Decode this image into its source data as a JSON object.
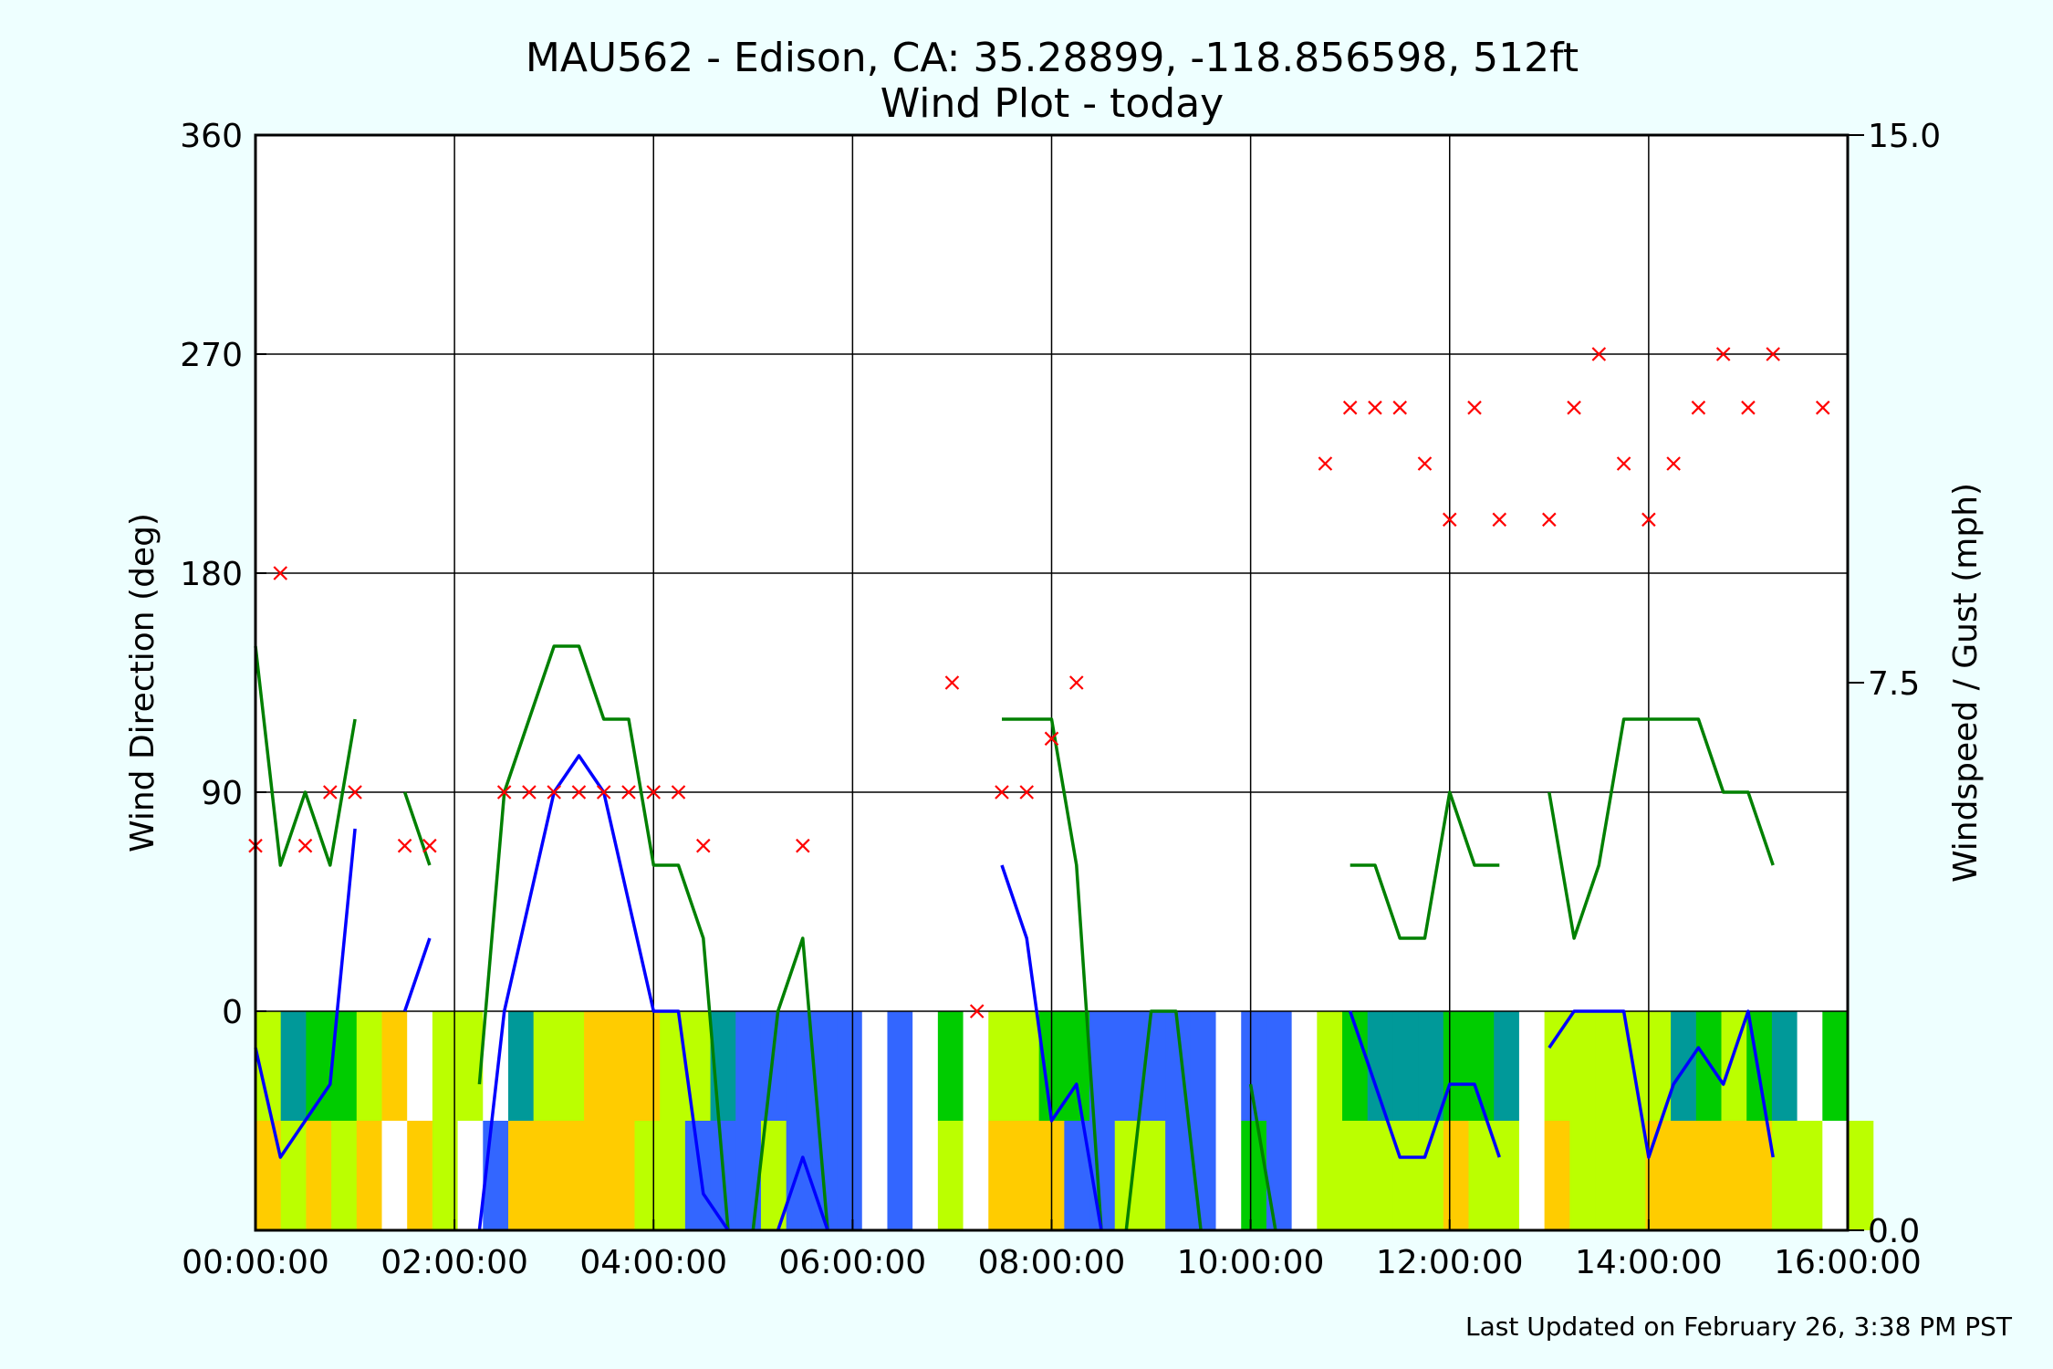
{
  "chart_data": {
    "type": "line",
    "title": "MAU562 - Edison, CA: 35.28899, -118.856598, 512ft",
    "subtitle": "Wind Plot - today",
    "ylabel_left": "Wind Direction (deg)",
    "ylabel_right": "Windspeed / Gust (mph)",
    "footer": "Last Updated on February 26, 3:38 PM PST",
    "x_range_hours": [
      0,
      16
    ],
    "x_ticks": [
      {
        "h": 0,
        "label": "00:00:00"
      },
      {
        "h": 2,
        "label": "02:00:00"
      },
      {
        "h": 4,
        "label": "04:00:00"
      },
      {
        "h": 6,
        "label": "06:00:00"
      },
      {
        "h": 8,
        "label": "08:00:00"
      },
      {
        "h": 10,
        "label": "10:00:00"
      },
      {
        "h": 12,
        "label": "12:00:00"
      },
      {
        "h": 14,
        "label": "14:00:00"
      },
      {
        "h": 16,
        "label": "16:00:00"
      }
    ],
    "y_left": {
      "range": [
        -90,
        360
      ],
      "ticks": [
        {
          "v": 0,
          "label": "0"
        },
        {
          "v": 90,
          "label": "90"
        },
        {
          "v": 180,
          "label": "180"
        },
        {
          "v": 270,
          "label": "270"
        },
        {
          "v": 360,
          "label": "360"
        }
      ]
    },
    "y_right": {
      "range": [
        0,
        15
      ],
      "ticks": [
        {
          "v": 0,
          "label": "0.0"
        },
        {
          "v": 7.5,
          "label": "7.5"
        },
        {
          "v": 15,
          "label": "15.0"
        }
      ]
    },
    "grid": true,
    "colors": {
      "direction": "#ff0000",
      "speed": "#0000ff",
      "gust": "#008000",
      "background": "#eeffff"
    },
    "series": [
      {
        "role": "direction",
        "marker": "x",
        "color": "#ff0000",
        "points": [
          [
            0.0,
            68
          ],
          [
            0.25,
            180
          ],
          [
            0.5,
            68
          ],
          [
            0.75,
            90
          ],
          [
            1.0,
            90
          ],
          [
            1.5,
            68
          ],
          [
            1.75,
            68
          ],
          [
            2.5,
            90
          ],
          [
            2.75,
            90
          ],
          [
            3.0,
            90
          ],
          [
            3.25,
            90
          ],
          [
            3.5,
            90
          ],
          [
            3.75,
            90
          ],
          [
            4.0,
            90
          ],
          [
            4.25,
            90
          ],
          [
            4.5,
            68
          ],
          [
            5.5,
            68
          ],
          [
            7.0,
            135
          ],
          [
            7.25,
            0
          ],
          [
            7.5,
            90
          ],
          [
            7.75,
            90
          ],
          [
            8.0,
            112
          ],
          [
            8.25,
            135
          ],
          [
            10.75,
            225
          ],
          [
            11.0,
            248
          ],
          [
            11.25,
            248
          ],
          [
            11.5,
            248
          ],
          [
            11.75,
            225
          ],
          [
            12.0,
            202
          ],
          [
            12.25,
            248
          ],
          [
            12.5,
            202
          ],
          [
            13.0,
            202
          ],
          [
            13.25,
            248
          ],
          [
            13.5,
            270
          ],
          [
            13.75,
            225
          ],
          [
            14.0,
            202
          ],
          [
            14.25,
            225
          ],
          [
            14.5,
            248
          ],
          [
            14.75,
            270
          ],
          [
            15.0,
            248
          ],
          [
            15.25,
            270
          ],
          [
            15.75,
            248
          ]
        ]
      },
      {
        "role": "speed",
        "unit": "mph",
        "color": "#0000ff",
        "segments": [
          [
            [
              0.0,
              2.5
            ],
            [
              0.25,
              1.0
            ],
            [
              0.5,
              1.5
            ],
            [
              0.75,
              2.0
            ],
            [
              1.0,
              5.5
            ]
          ],
          [
            [
              1.5,
              3.0
            ],
            [
              1.75,
              4.0
            ]
          ],
          [
            [
              2.25,
              0.0
            ],
            [
              2.5,
              3.0
            ],
            [
              2.75,
              4.5
            ],
            [
              3.0,
              6.0
            ],
            [
              3.25,
              6.5
            ],
            [
              3.5,
              6.0
            ],
            [
              3.75,
              4.5
            ],
            [
              4.0,
              3.0
            ],
            [
              4.25,
              3.0
            ],
            [
              4.5,
              0.5
            ],
            [
              4.75,
              0.0
            ]
          ],
          [
            [
              5.25,
              0.0
            ],
            [
              5.5,
              1.0
            ],
            [
              5.75,
              0.0
            ]
          ],
          [
            [
              7.5,
              5.0
            ],
            [
              7.75,
              4.0
            ],
            [
              8.0,
              1.5
            ],
            [
              8.25,
              2.0
            ],
            [
              8.5,
              0.0
            ]
          ],
          [
            [
              11.0,
              3.0
            ],
            [
              11.25,
              2.0
            ],
            [
              11.5,
              1.0
            ],
            [
              11.75,
              1.0
            ],
            [
              12.0,
              2.0
            ],
            [
              12.25,
              2.0
            ],
            [
              12.5,
              1.0
            ]
          ],
          [
            [
              13.0,
              2.5
            ],
            [
              13.25,
              3.0
            ],
            [
              13.5,
              3.0
            ],
            [
              13.75,
              3.0
            ],
            [
              14.0,
              1.0
            ],
            [
              14.25,
              2.0
            ],
            [
              14.5,
              2.5
            ],
            [
              14.75,
              2.0
            ],
            [
              15.0,
              3.0
            ],
            [
              15.25,
              1.0
            ]
          ]
        ]
      },
      {
        "role": "gust",
        "unit": "mph",
        "color": "#008000",
        "segments": [
          [
            [
              0.0,
              8.0
            ],
            [
              0.25,
              5.0
            ],
            [
              0.5,
              6.0
            ],
            [
              0.75,
              5.0
            ],
            [
              1.0,
              7.0
            ]
          ],
          [
            [
              1.5,
              6.0
            ],
            [
              1.75,
              5.0
            ]
          ],
          [
            [
              2.25,
              2.0
            ],
            [
              2.5,
              6.0
            ],
            [
              2.75,
              7.0
            ],
            [
              3.0,
              8.0
            ],
            [
              3.25,
              8.0
            ],
            [
              3.5,
              7.0
            ],
            [
              3.75,
              7.0
            ],
            [
              4.0,
              5.0
            ],
            [
              4.25,
              5.0
            ],
            [
              4.5,
              4.0
            ],
            [
              4.75,
              0.0
            ]
          ],
          [
            [
              5.0,
              0.0
            ],
            [
              5.25,
              3.0
            ],
            [
              5.5,
              4.0
            ],
            [
              5.75,
              0.0
            ]
          ],
          [
            [
              7.5,
              7.0
            ],
            [
              8.0,
              7.0
            ],
            [
              8.25,
              5.0
            ],
            [
              8.5,
              0.0
            ]
          ],
          [
            [
              8.75,
              0.0
            ],
            [
              9.0,
              3.0
            ],
            [
              9.25,
              3.0
            ],
            [
              9.5,
              0.0
            ]
          ],
          [
            [
              10.0,
              2.0
            ],
            [
              10.25,
              0.0
            ]
          ],
          [
            [
              11.0,
              5.0
            ],
            [
              11.25,
              5.0
            ],
            [
              11.5,
              4.0
            ],
            [
              11.75,
              4.0
            ],
            [
              12.0,
              6.0
            ],
            [
              12.25,
              5.0
            ],
            [
              12.5,
              5.0
            ]
          ],
          [
            [
              13.0,
              6.0
            ],
            [
              13.25,
              4.0
            ],
            [
              13.5,
              5.0
            ],
            [
              13.75,
              7.0
            ],
            [
              14.0,
              7.0
            ],
            [
              14.25,
              7.0
            ],
            [
              14.5,
              7.0
            ],
            [
              14.75,
              6.0
            ],
            [
              15.0,
              6.0
            ],
            [
              15.25,
              5.0
            ]
          ]
        ]
      }
    ],
    "heat_band": {
      "colors": {
        "A": "#3366ff",
        "B": "#009999",
        "C": "#00cc00",
        "D": "#bbff00",
        "E": "#ffcc00",
        "W": "#ffffff"
      },
      "upper": "DBCCDEWDDWBDDEEEDDBAAAAAWAWCWDDCCAAAAAWAAWDCBBBCCBWDDDDDBCDCBWC",
      "lower": "EDEDEWEDWAEEEEEDDAAADAAAWAWDWEEEAADDAAWCAWDDDDDEDDWEDDDEEEEEDDWD"
    }
  }
}
